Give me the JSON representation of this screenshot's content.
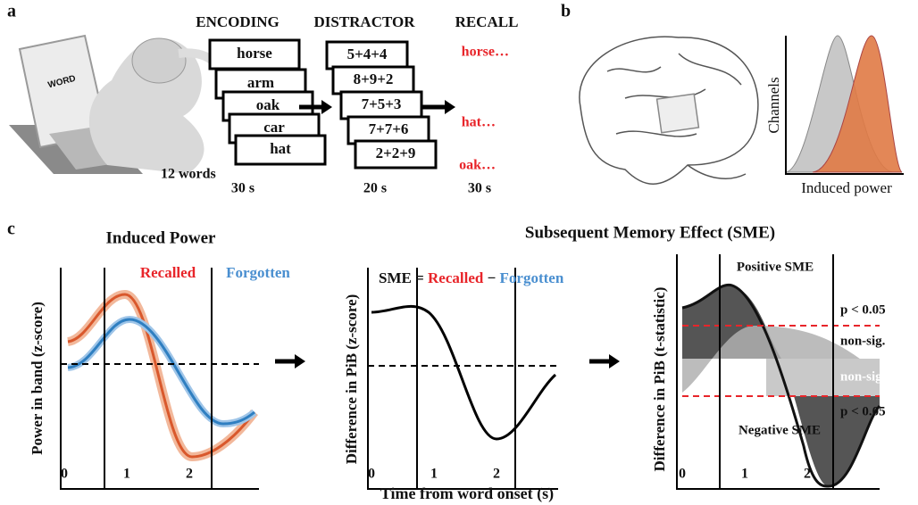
{
  "panel_a": {
    "label": "a",
    "laptop_text": "WORD",
    "encoding": {
      "title": "ENCODING",
      "words": [
        "horse",
        "arm",
        "oak",
        "car",
        "hat"
      ],
      "count": "12 words",
      "duration": "30 s"
    },
    "distractor": {
      "title": "DISTRACTOR",
      "items": [
        "5+4+4",
        "8+9+2",
        "7+5+3",
        "7+7+6",
        "2+2+9"
      ],
      "duration": "20 s"
    },
    "recall": {
      "title": "RECALL",
      "words": [
        "horse…",
        "hat…",
        "oak…"
      ],
      "duration": "30 s"
    }
  },
  "panel_b": {
    "label": "b",
    "y_label": "Channels",
    "x_label": "Induced power"
  },
  "panel_c": {
    "label": "c",
    "title_left": "Induced Power",
    "title_right": "Subsequent Memory Effect (SME)",
    "plots": [
      {
        "y_label": "Power in band (z-score)",
        "legend": [
          "Recalled",
          "Forgotten"
        ],
        "xticks": [
          0,
          1,
          2
        ]
      },
      {
        "y_label": "Difference in PiB (z-score)",
        "equation": [
          "SME =",
          "Recalled",
          "−",
          "Forgotten"
        ],
        "x_label": "Time from word onset (s)",
        "xticks": [
          0,
          1,
          2
        ]
      },
      {
        "y_label": "Difference in PiB (t-statistic)",
        "annotations": [
          "Positive SME",
          "p < 0.05",
          "non-sig.",
          "non-sig.",
          "p < 0.05",
          "Negative SME"
        ],
        "xticks": [
          0,
          1,
          2
        ]
      }
    ]
  }
}
